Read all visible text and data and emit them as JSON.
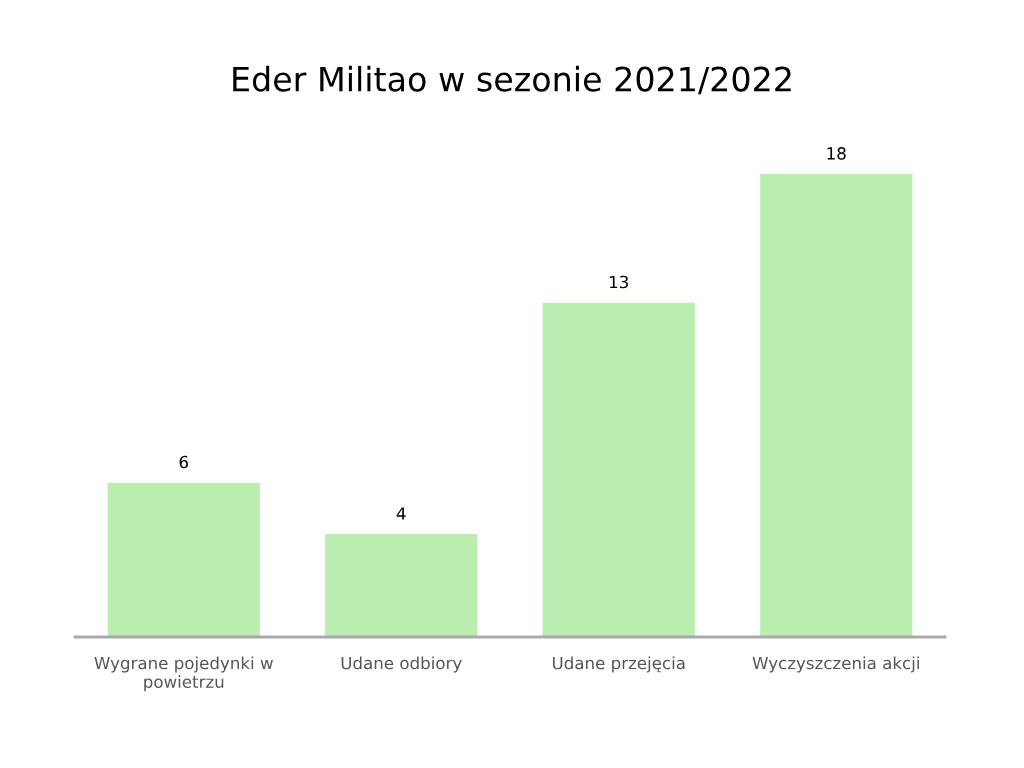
{
  "chart_data": {
    "type": "bar",
    "title": "Eder Militao w sezonie 2021/2022",
    "categories": [
      "Wygrane pojedynki w powietrzu",
      "Udane odbiory",
      "Udane przejęcia",
      "Wyczyszczenia akcji"
    ],
    "values": [
      6,
      4,
      13,
      18
    ],
    "color": "#bbedb0",
    "data_labels": true,
    "grid": false,
    "legend": false
  }
}
